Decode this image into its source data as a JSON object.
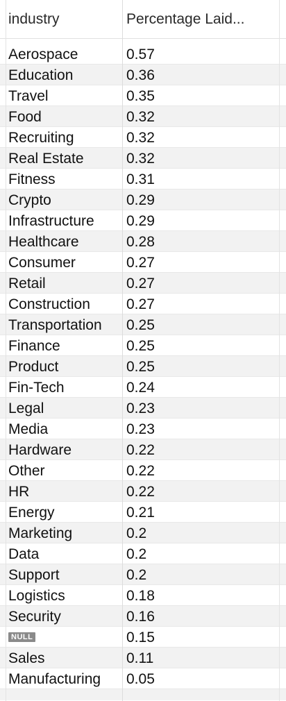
{
  "columns": [
    "industry",
    "Percentage Laid..."
  ],
  "rows": [
    {
      "industry": "Aerospace",
      "pct": "0.57"
    },
    {
      "industry": "Education",
      "pct": "0.36"
    },
    {
      "industry": "Travel",
      "pct": "0.35"
    },
    {
      "industry": "Food",
      "pct": "0.32"
    },
    {
      "industry": "Recruiting",
      "pct": "0.32"
    },
    {
      "industry": "Real Estate",
      "pct": "0.32"
    },
    {
      "industry": "Fitness",
      "pct": "0.31"
    },
    {
      "industry": "Crypto",
      "pct": "0.29"
    },
    {
      "industry": "Infrastructure",
      "pct": "0.29"
    },
    {
      "industry": "Healthcare",
      "pct": "0.28"
    },
    {
      "industry": "Consumer",
      "pct": "0.27"
    },
    {
      "industry": "Retail",
      "pct": "0.27"
    },
    {
      "industry": "Construction",
      "pct": "0.27"
    },
    {
      "industry": "Transportation",
      "pct": "0.25"
    },
    {
      "industry": "Finance",
      "pct": "0.25"
    },
    {
      "industry": "Product",
      "pct": "0.25"
    },
    {
      "industry": "Fin-Tech",
      "pct": "0.24"
    },
    {
      "industry": "Legal",
      "pct": "0.23"
    },
    {
      "industry": "Media",
      "pct": "0.23"
    },
    {
      "industry": "Hardware",
      "pct": "0.22"
    },
    {
      "industry": "Other",
      "pct": "0.22"
    },
    {
      "industry": "HR",
      "pct": "0.22"
    },
    {
      "industry": "Energy",
      "pct": "0.21"
    },
    {
      "industry": "Marketing",
      "pct": "0.2"
    },
    {
      "industry": "Data",
      "pct": "0.2"
    },
    {
      "industry": "Support",
      "pct": "0.2"
    },
    {
      "industry": "Logistics",
      "pct": "0.18"
    },
    {
      "industry": "Security",
      "pct": "0.16"
    },
    {
      "industry": "NULL",
      "pct": "0.15",
      "is_null": true
    },
    {
      "industry": "Sales",
      "pct": "0.11"
    },
    {
      "industry": "Manufacturing",
      "pct": "0.05"
    }
  ]
}
